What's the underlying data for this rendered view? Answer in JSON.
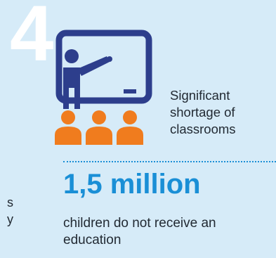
{
  "number": "4",
  "caption": {
    "line1": "Significant",
    "line2": "shortage of",
    "line3": "classrooms"
  },
  "statistic": "1,5 million",
  "description": "children do not receive an education",
  "left_fragment": {
    "line1": "s",
    "line2": "y"
  },
  "icons": {
    "main": "teacher-at-board-icon",
    "audience": "students-icon"
  },
  "colors": {
    "background": "#d6ebf8",
    "icon_navy": "#2d3e8c",
    "icon_orange": "#f07c1e",
    "accent_blue": "#1a8fd6",
    "text": "#222a33"
  }
}
